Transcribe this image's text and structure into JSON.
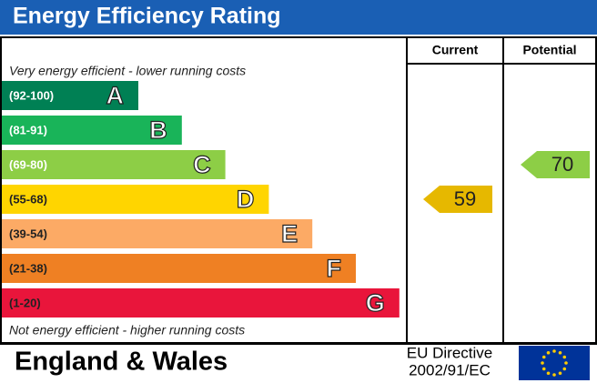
{
  "header": {
    "title": "Energy Efficiency Rating"
  },
  "columns": {
    "current": "Current",
    "potential": "Potential"
  },
  "top_note": "Very energy efficient - lower running costs",
  "bottom_note": "Not energy efficient - higher running costs",
  "bands": [
    {
      "range": "(92-100)",
      "letter": "A",
      "color": "#008054"
    },
    {
      "range": "(81-91)",
      "letter": "B",
      "color": "#19b459"
    },
    {
      "range": "(69-80)",
      "letter": "C",
      "color": "#8dce46"
    },
    {
      "range": "(55-68)",
      "letter": "D",
      "color": "#ffd500"
    },
    {
      "range": "(39-54)",
      "letter": "E",
      "color": "#fcaa65"
    },
    {
      "range": "(21-38)",
      "letter": "F",
      "color": "#ef8023"
    },
    {
      "range": "(1-20)",
      "letter": "G",
      "color": "#e9153b"
    }
  ],
  "current": {
    "value": 59,
    "color": "#e6b800"
  },
  "potential": {
    "value": 70,
    "color": "#8dce46"
  },
  "footer": {
    "region": "England & Wales",
    "directive_line1": "EU Directive",
    "directive_line2": "2002/91/EC"
  }
}
